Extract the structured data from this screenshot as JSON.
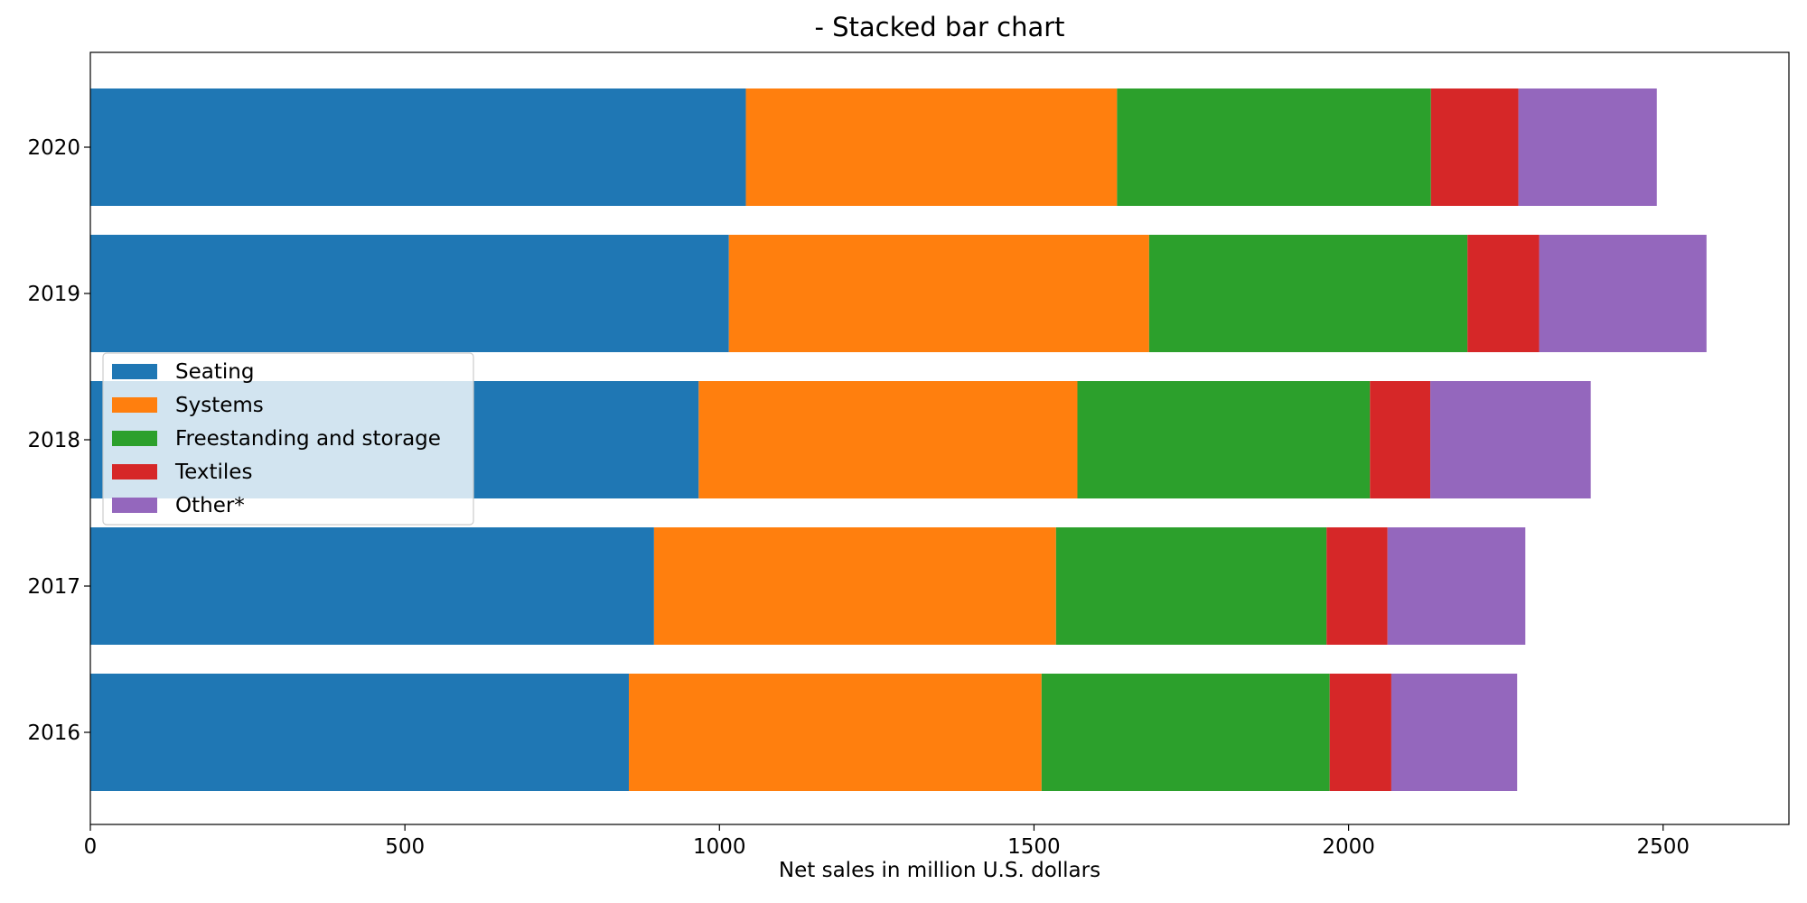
{
  "chart_data": {
    "type": "bar",
    "orientation": "horizontal",
    "stacked": true,
    "title": "- Stacked bar chart",
    "xlabel": "Net sales in million U.S. dollars",
    "ylabel": "",
    "xlim": [
      0,
      2700
    ],
    "x_ticks": [
      "0",
      "500",
      "1000",
      "1500",
      "2000",
      "2500"
    ],
    "categories": [
      "2016",
      "2017",
      "2018",
      "2019",
      "2020"
    ],
    "series": [
      {
        "name": "Seating",
        "color": "#1f77b4",
        "values": [
          856,
          896,
          967,
          1015,
          1042
        ]
      },
      {
        "name": "Systems",
        "color": "#ff7f0e",
        "values": [
          656,
          639,
          602,
          668,
          590
        ]
      },
      {
        "name": "Freestanding and storage",
        "color": "#2ca02c",
        "values": [
          458,
          430,
          465,
          506,
          499
        ]
      },
      {
        "name": "Textiles",
        "color": "#d62728",
        "values": [
          98,
          97,
          96,
          114,
          139
        ]
      },
      {
        "name": "Other*",
        "color": "#9467bd",
        "values": [
          200,
          219,
          255,
          266,
          220
        ]
      }
    ],
    "legend_position": "center-left",
    "grid": false
  }
}
